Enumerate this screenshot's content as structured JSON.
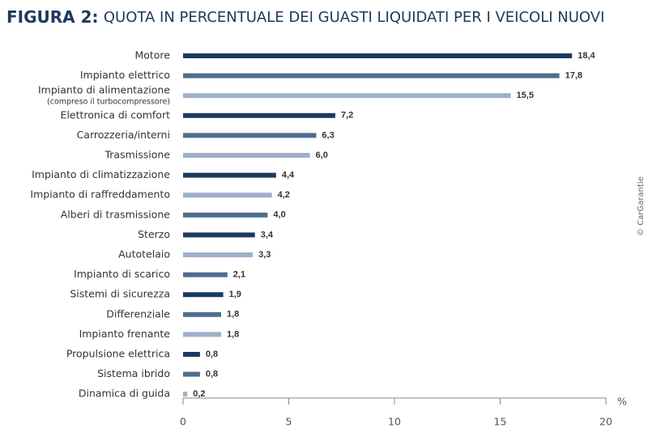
{
  "chart_data": {
    "type": "bar",
    "orientation": "horizontal",
    "figure_label": "FIGURA 2:",
    "title": "QUOTA IN PERCENTUALE DEI GUASTI LIQUIDATI PER I VEICOLI NUOVI",
    "categories": [
      "Motore",
      "Impianto elettrico",
      "Impianto di alimentazione",
      "Elettronica di comfort",
      "Carrozzeria/interni",
      "Trasmissione",
      "Impianto di climatizzazione",
      "Impianto di raffreddamento",
      "Alberi di trasmissione",
      "Sterzo",
      "Autotelaio",
      "Impianto di scarico",
      "Sistemi di sicurezza",
      "Differenziale",
      "Impianto frenante",
      "Propulsione elettrica",
      "Sistema ibrido",
      "Dinamica di guida"
    ],
    "category_notes": {
      "2": "(compreso il turbocompressore)"
    },
    "values": [
      18.4,
      17.8,
      15.5,
      7.2,
      6.3,
      6.0,
      4.4,
      4.2,
      4.0,
      3.4,
      3.3,
      2.1,
      1.9,
      1.8,
      1.8,
      0.8,
      0.8,
      0.2
    ],
    "value_labels": [
      "18,4",
      "17,8",
      "15,5",
      "7,2",
      "6,3",
      "6,0",
      "4,4",
      "4,2",
      "4,0",
      "3,4",
      "3,3",
      "2,1",
      "1,9",
      "1,8",
      "1,8",
      "0,8",
      "0,8",
      "0,2"
    ],
    "colors": [
      "#1b3a5e",
      "#4e6d8e",
      "#9eb0c9",
      "#1b3a5e",
      "#4e6d8e",
      "#9eb0c9",
      "#1b3a5e",
      "#9eb0c9",
      "#4e6d8e",
      "#1b3a5e",
      "#9eb0c9",
      "#4e6d8e",
      "#1b3a5e",
      "#4e6d8e",
      "#9eb0c9",
      "#1b3a5e",
      "#4e6d8e",
      "#9eb0c9"
    ],
    "xlim": [
      0,
      20
    ],
    "xticks": [
      0,
      5,
      10,
      15,
      20
    ],
    "x_unit": "%",
    "source": "© CarGarantie"
  }
}
